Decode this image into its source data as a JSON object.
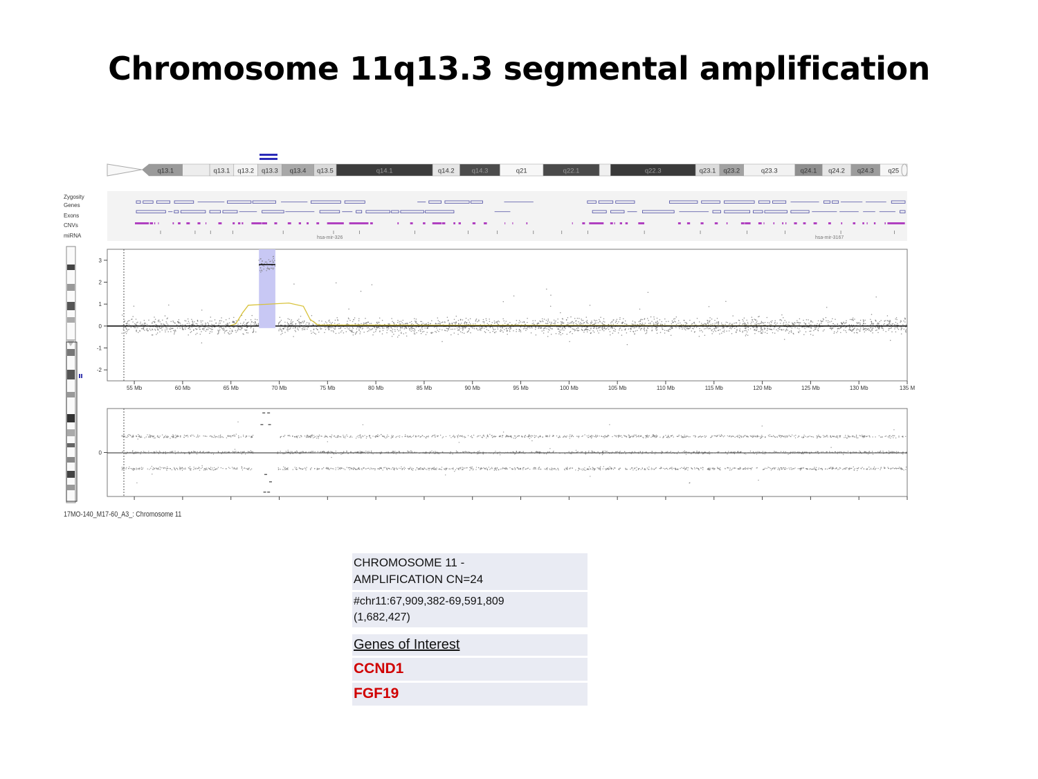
{
  "slide": {
    "title": "Chromosome 11q13.3 segmental amplification"
  },
  "ideogram": {
    "bands": [
      {
        "label": "q13.1",
        "fill": "#9a9a9a"
      },
      {
        "label": "",
        "fill": "#ededed"
      },
      {
        "label": "q13.1",
        "fill": "#e9e9e9"
      },
      {
        "label": "q13.2",
        "fill": "#f4f4f4"
      },
      {
        "label": "q13.3",
        "fill": "#d6d6d6"
      },
      {
        "label": "q13.4",
        "fill": "#a8a8a8"
      },
      {
        "label": "q13.5",
        "fill": "#dadada"
      },
      {
        "label": "q14.1",
        "fill": "#3c3c3c"
      },
      {
        "label": "q14.2",
        "fill": "#e6e6e6"
      },
      {
        "label": "q14.3",
        "fill": "#4c4c4c"
      },
      {
        "label": "q21",
        "fill": "#f7f7f7"
      },
      {
        "label": "q22.1",
        "fill": "#4a4a4a"
      },
      {
        "label": "",
        "fill": "#f0f0f0"
      },
      {
        "label": "q22.3",
        "fill": "#3a3a3a"
      },
      {
        "label": "q23.1",
        "fill": "#dcdcdc"
      },
      {
        "label": "q23.2",
        "fill": "#a2a2a2"
      },
      {
        "label": "q23.3",
        "fill": "#f2f2f2"
      },
      {
        "label": "q24.1",
        "fill": "#8f8f8f"
      },
      {
        "label": "q24.2",
        "fill": "#e6e6e6"
      },
      {
        "label": "q24.3",
        "fill": "#9c9c9c"
      },
      {
        "label": "q25",
        "fill": "#f6f6f6"
      }
    ]
  },
  "tracks": {
    "labels": [
      "Zygosity",
      "Genes",
      "Exons",
      "CNVs",
      "miRNA"
    ],
    "mirna_labels": [
      "hsa-mir-326",
      "hsa-mir-3167"
    ]
  },
  "chart_data": {
    "type": "scatter",
    "title": "",
    "xlabel": "",
    "ylabel": "",
    "x_unit": "Mb",
    "x_tick_labels": [
      "55 Mb",
      "60 Mb",
      "65 Mb",
      "70 Mb",
      "75 Mb",
      "80 Mb",
      "85 Mb",
      "90 Mb",
      "95 Mb",
      "100 Mb",
      "105 Mb",
      "110 Mb",
      "115 Mb",
      "120 Mb",
      "125 Mb",
      "130 Mb",
      "135 M"
    ],
    "x_ticks": [
      55,
      60,
      65,
      70,
      75,
      80,
      85,
      90,
      95,
      100,
      105,
      110,
      115,
      120,
      125,
      130,
      135
    ],
    "xlim": [
      52.2,
      135
    ],
    "top_panel": {
      "y_ticks": [
        3,
        2,
        1,
        0,
        -1,
        -2
      ],
      "ylim": [
        -2.5,
        3.5
      ],
      "baseline_segments": [
        {
          "x_start": 52.2,
          "x_end": 67.9,
          "y": 0
        },
        {
          "x_start": 67.9,
          "x_end": 69.6,
          "y": 2.8
        },
        {
          "x_start": 69.6,
          "x_end": 135,
          "y": 0
        }
      ],
      "amplified_region": {
        "x_start": 67.9,
        "x_end": 69.6
      },
      "smoothed_line": {
        "color": "#d8c23a",
        "x": [
          52.2,
          64.8,
          65.5,
          66.2,
          66.8,
          71.0,
          72.5,
          73.2,
          74.0,
          135
        ],
        "y": [
          0,
          0,
          0.1,
          0.6,
          0.95,
          1.05,
          0.9,
          0.3,
          0.05,
          0
        ]
      }
    },
    "bottom_panel": {
      "y_ticks": [
        0
      ],
      "ylim": [
        -1.5,
        1.5
      ]
    }
  },
  "sample": {
    "label": "17MO-140_M17-60_A3_: Chromosome 11"
  },
  "info": {
    "line1": "CHROMOSOME 11 -",
    "line2": "AMPLIFICATION CN=24",
    "coord1": "#chr11:67,909,382-69,591,809",
    "coord2": "(1,682,427)",
    "genes_header": "Genes of Interest",
    "genes": [
      "CCND1",
      "FGF19"
    ],
    "gene_color": "#d00000"
  },
  "colors": {
    "amplified_fill": "#c8c8f4",
    "cnv_mark": "#b040c0",
    "gene_outline": "#4848a0",
    "ideogram_marker": "#2a2ab8"
  }
}
